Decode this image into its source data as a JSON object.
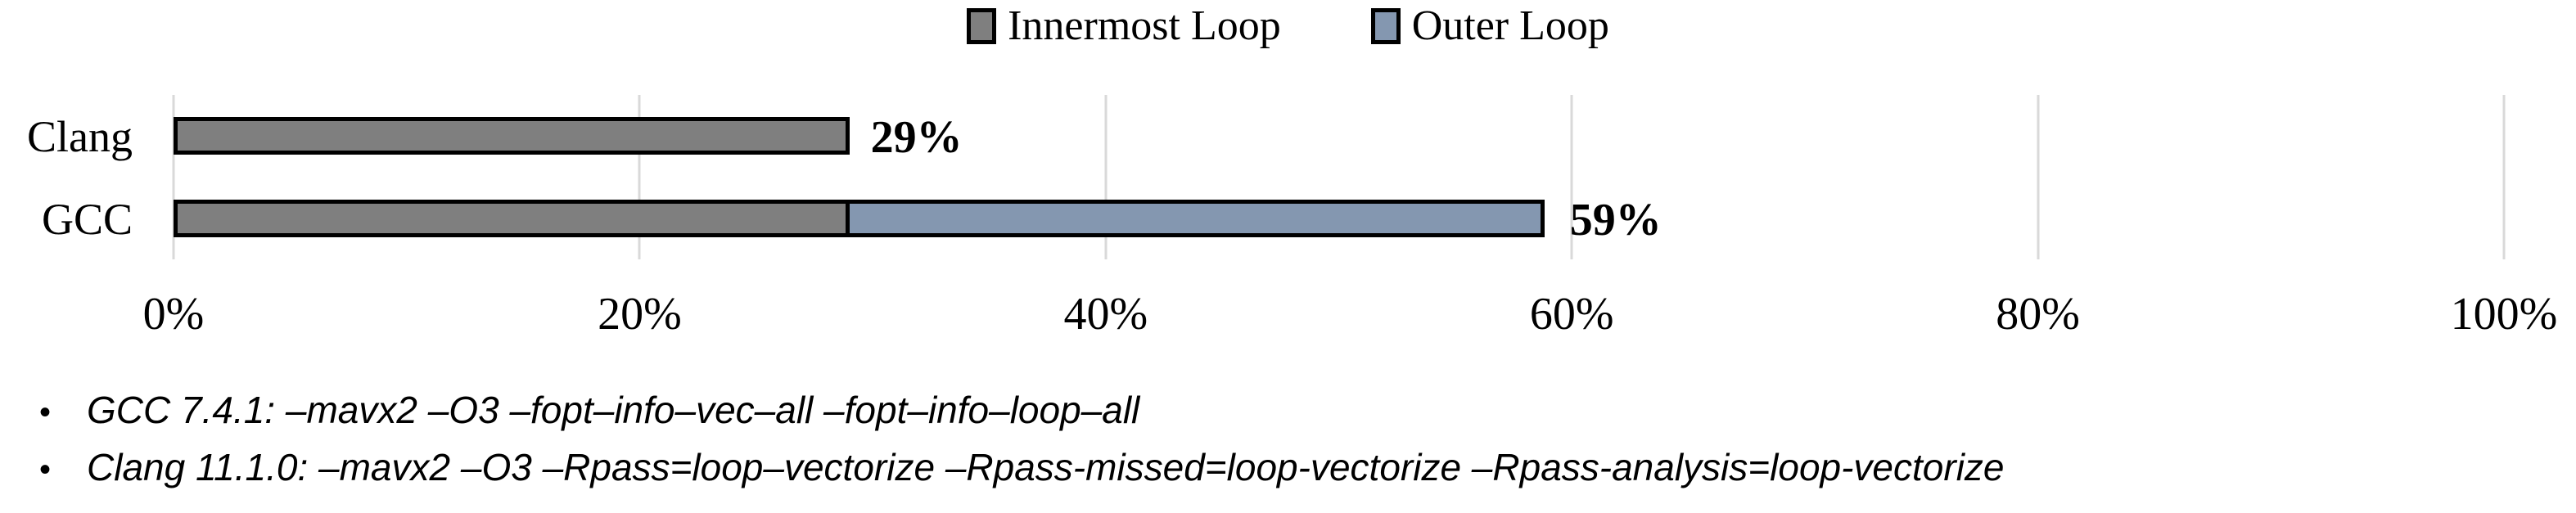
{
  "chart_data": {
    "type": "bar",
    "orientation": "horizontal",
    "stacked": true,
    "title": "",
    "xlabel": "",
    "ylabel": "",
    "categories": [
      "Clang",
      "GCC"
    ],
    "series": [
      {
        "name": "Innermost Loop",
        "color": "#7f7f7f",
        "values": [
          29,
          29
        ]
      },
      {
        "name": "Outer Loop",
        "color": "#8497b0",
        "values": [
          0,
          30
        ]
      }
    ],
    "bar_total_labels": [
      "29%",
      "59%"
    ],
    "xlim": [
      0,
      100
    ],
    "x_tick_labels": [
      "0%",
      "20%",
      "40%",
      "60%",
      "80%",
      "100%"
    ],
    "x_tick_values": [
      0,
      20,
      40,
      60,
      80,
      100
    ],
    "grid": "vertical",
    "gridline_color": "#d9d9d9",
    "bar_border_color": "#000000",
    "legend_position": "top-center"
  },
  "legend": {
    "items": [
      {
        "label": "Innermost Loop",
        "color": "#7f7f7f"
      },
      {
        "label": "Outer Loop",
        "color": "#8497b0"
      }
    ]
  },
  "footnotes": {
    "bullet": "•",
    "items": [
      "GCC 7.4.1: –mavx2 –O3 –fopt–info–vec–all –fopt–info–loop–all",
      "Clang 11.1.0: –mavx2 –O3 –Rpass=loop–vectorize –Rpass-missed=loop-vectorize –Rpass-analysis=loop-vectorize"
    ]
  }
}
